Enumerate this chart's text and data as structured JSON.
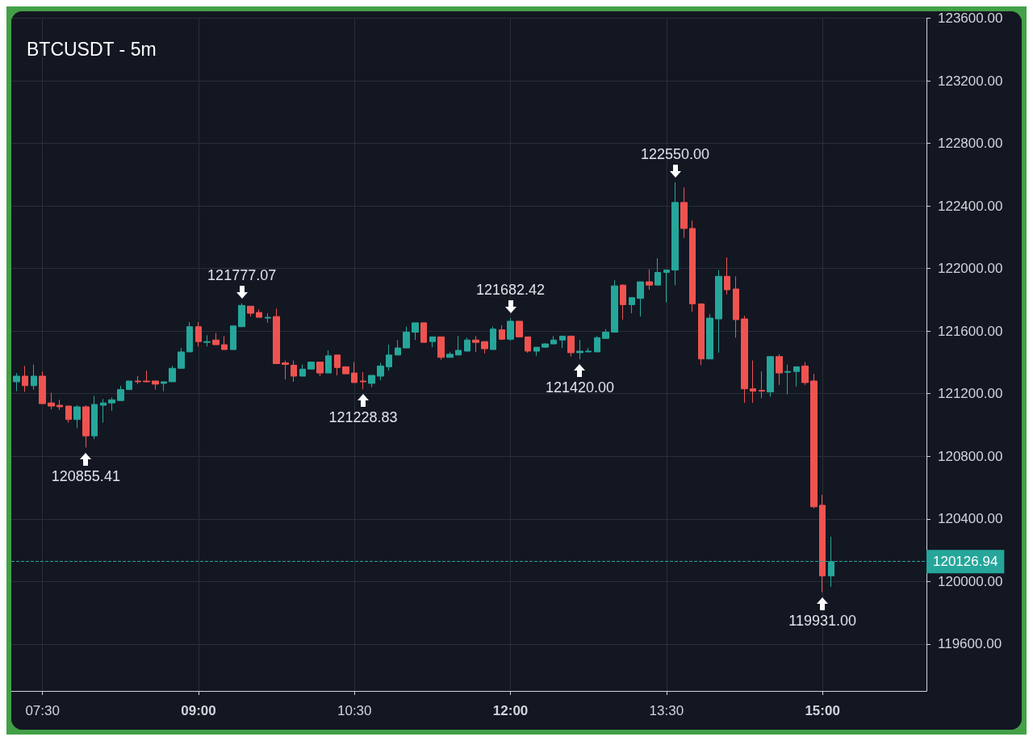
{
  "chart_data": {
    "type": "candlestick",
    "title": "BTCUSDT - 5m",
    "x": [
      7.25,
      7.3333,
      7.4167,
      7.5,
      7.5833,
      7.6667,
      7.75,
      7.8333,
      7.9167,
      8,
      8.0833,
      8.1667,
      8.25,
      8.3333,
      8.4167,
      8.5,
      8.5833,
      8.6667,
      8.75,
      8.8333,
      8.9167,
      9,
      9.0833,
      9.1667,
      9.25,
      9.3333,
      9.4167,
      9.5,
      9.5833,
      9.6667,
      9.75,
      9.8333,
      9.9167,
      10,
      10.0833,
      10.1667,
      10.25,
      10.3333,
      10.4167,
      10.5,
      10.5833,
      10.6667,
      10.75,
      10.8333,
      10.9167,
      11,
      11.0833,
      11.1667,
      11.25,
      11.3333,
      11.4167,
      11.5,
      11.5833,
      11.6667,
      11.75,
      11.8333,
      11.9167,
      12,
      12.0833,
      12.1667,
      12.25,
      12.3333,
      12.4167,
      12.5,
      12.5833,
      12.6667,
      12.75,
      12.8333,
      12.9167,
      13,
      13.0833,
      13.1667,
      13.25,
      13.3333,
      13.4167,
      13.5,
      13.5833,
      13.6667,
      13.75,
      13.8333,
      13.9167,
      14,
      14.0833,
      14.1667,
      14.25,
      14.3333,
      14.4167,
      14.5,
      14.5833,
      14.6667,
      14.75,
      14.8333,
      14.9167,
      15,
      15.0833
    ],
    "ohlc": [
      [
        121276,
        121332,
        121216,
        121312
      ],
      [
        121312,
        121377,
        121211,
        121251
      ],
      [
        121251,
        121387,
        121226,
        121312
      ],
      [
        121312,
        121342,
        121136,
        121136
      ],
      [
        121141,
        121206,
        121100,
        121121
      ],
      [
        121126,
        121161,
        121095,
        121116
      ],
      [
        121121,
        121121,
        121015,
        121035
      ],
      [
        121035,
        121126,
        120980,
        121116
      ],
      [
        121116,
        121126,
        120855.41,
        120930
      ],
      [
        120930,
        121186,
        120910,
        121131
      ],
      [
        121126,
        121166,
        121015,
        121141
      ],
      [
        121141,
        121176,
        121090,
        121161
      ],
      [
        121156,
        121251,
        121156,
        121226
      ],
      [
        121226,
        121281,
        121226,
        121281
      ],
      [
        121281,
        121312,
        121261,
        121276
      ],
      [
        121281,
        121347,
        121271,
        121276
      ],
      [
        121281,
        121281,
        121226,
        121261
      ],
      [
        121266,
        121276,
        121216,
        121276
      ],
      [
        121276,
        121377,
        121276,
        121362
      ],
      [
        121362,
        121492,
        121362,
        121467
      ],
      [
        121467,
        121658,
        121467,
        121628
      ],
      [
        121628,
        121658,
        121502,
        121533
      ],
      [
        121528,
        121573,
        121502,
        121533
      ],
      [
        121543,
        121588,
        121513,
        121513
      ],
      [
        121513,
        121568,
        121482,
        121482
      ],
      [
        121482,
        121633,
        121482,
        121633
      ],
      [
        121628,
        121777.07,
        121628,
        121764
      ],
      [
        121759,
        121759,
        121693,
        121714
      ],
      [
        121719,
        121739,
        121688,
        121688
      ],
      [
        121683,
        121714,
        121653,
        121688
      ],
      [
        121693,
        121744,
        121392,
        121392
      ],
      [
        121397,
        121412,
        121291,
        121387
      ],
      [
        121382,
        121412,
        121276,
        121312
      ],
      [
        121312,
        121387,
        121312,
        121357
      ],
      [
        121357,
        121402,
        121357,
        121402
      ],
      [
        121402,
        121402,
        121312,
        121332
      ],
      [
        121332,
        121477,
        121332,
        121442
      ],
      [
        121447,
        121447,
        121317,
        121367
      ],
      [
        121372,
        121372,
        121327,
        121327
      ],
      [
        121332,
        121402,
        121271,
        121271
      ],
      [
        121281,
        121337,
        121228.83,
        121276
      ],
      [
        121266,
        121317,
        121241,
        121317
      ],
      [
        121312,
        121397,
        121286,
        121377
      ],
      [
        121372,
        121513,
        121347,
        121447
      ],
      [
        121447,
        121543,
        121447,
        121492
      ],
      [
        121492,
        121628,
        121492,
        121593
      ],
      [
        121593,
        121653,
        121543,
        121653
      ],
      [
        121653,
        121653,
        121528,
        121528
      ],
      [
        121533,
        121563,
        121497,
        121563
      ],
      [
        121563,
        121563,
        121417,
        121432
      ],
      [
        121432,
        121467,
        121432,
        121452
      ],
      [
        121447,
        121568,
        121447,
        121477
      ],
      [
        121472,
        121558,
        121472,
        121543
      ],
      [
        121543,
        121568,
        121467,
        121528
      ],
      [
        121533,
        121533,
        121457,
        121487
      ],
      [
        121482,
        121628,
        121482,
        121613
      ],
      [
        121608,
        121638,
        121543,
        121548
      ],
      [
        121548,
        121682.42,
        121538,
        121663
      ],
      [
        121663,
        121663,
        121563,
        121563
      ],
      [
        121563,
        121563,
        121462,
        121472
      ],
      [
        121472,
        121497,
        121442,
        121497
      ],
      [
        121497,
        121523,
        121492,
        121518
      ],
      [
        121518,
        121568,
        121518,
        121543
      ],
      [
        121543,
        121568,
        121492,
        121568
      ],
      [
        121568,
        121568,
        121437,
        121462
      ],
      [
        121462,
        121543,
        121420,
        121472
      ],
      [
        121467,
        121492,
        121467,
        121472
      ],
      [
        121467,
        121568,
        121467,
        121558
      ],
      [
        121553,
        121613,
        121553,
        121593
      ],
      [
        121593,
        121925,
        121593,
        121889
      ],
      [
        121894,
        121900,
        121673,
        121769
      ],
      [
        121769,
        121814,
        121714,
        121814
      ],
      [
        121809,
        121915,
        121693,
        121915
      ],
      [
        121915,
        121995,
        121864,
        121894
      ],
      [
        121894,
        122065,
        121894,
        121975
      ],
      [
        121975,
        121990,
        121784,
        121990
      ],
      [
        121990,
        122550,
        121894,
        122422
      ],
      [
        122422,
        122518,
        122196,
        122256
      ],
      [
        122256,
        122306,
        121724,
        121774
      ],
      [
        121774,
        121774,
        121382,
        121422
      ],
      [
        121422,
        121709,
        121422,
        121683
      ],
      [
        121678,
        121990,
        121462,
        121950
      ],
      [
        121950,
        122070,
        121834,
        121864
      ],
      [
        121869,
        121950,
        121558,
        121673
      ],
      [
        121678,
        121698,
        121141,
        121231
      ],
      [
        121231,
        121412,
        121141,
        121216
      ],
      [
        121221,
        121342,
        121171,
        121216
      ],
      [
        121211,
        121437,
        121181,
        121437
      ],
      [
        121437,
        121452,
        121256,
        121332
      ],
      [
        121337,
        121387,
        121196,
        121342
      ],
      [
        121342,
        121372,
        121246,
        121372
      ],
      [
        121377,
        121402,
        121256,
        121271
      ],
      [
        121281,
        121327,
        120467,
        120477
      ],
      [
        120487,
        120553,
        119931,
        120035
      ],
      [
        120035,
        120286,
        119965,
        120126.94
      ]
    ],
    "xlim": [
      7.2,
      16
    ],
    "xticks": [
      {
        "value": 7.5,
        "label": "07:30"
      },
      {
        "value": 9,
        "label": "09:00"
      },
      {
        "value": 10.5,
        "label": "10:30"
      },
      {
        "value": 12,
        "label": "12:00"
      },
      {
        "value": 13.5,
        "label": "13:30"
      },
      {
        "value": 15,
        "label": "15:00"
      }
    ],
    "ylim": [
      119300,
      123600
    ],
    "yticks": [
      {
        "value": 119600,
        "label": "119600.00"
      },
      {
        "value": 120000,
        "label": "120000.00"
      },
      {
        "value": 120400,
        "label": "120400.00"
      },
      {
        "value": 120800,
        "label": "120800.00"
      },
      {
        "value": 121200,
        "label": "121200.00"
      },
      {
        "value": 121600,
        "label": "121600.00"
      },
      {
        "value": 122000,
        "label": "122000.00"
      },
      {
        "value": 122400,
        "label": "122400.00"
      },
      {
        "value": 122800,
        "label": "122800.00"
      },
      {
        "value": 123200,
        "label": "123200.00"
      },
      {
        "value": 123600,
        "label": "123600.00"
      }
    ],
    "grid": true,
    "ref_lines": [
      {
        "axis": "y",
        "value": 120126.94,
        "label": "120126.94",
        "color": "#26a69a",
        "line_style": "dashed"
      }
    ],
    "annotations": [
      {
        "text": "120855.41",
        "x": 7.9167,
        "y": 120855.41
      },
      {
        "text": "121777.07",
        "x": 9.4167,
        "y": 121777.07
      },
      {
        "text": "121228.83",
        "x": 10.5833,
        "y": 121228.83
      },
      {
        "text": "121682.42",
        "x": 12,
        "y": 121682.42
      },
      {
        "text": "121420.00",
        "x": 12.6667,
        "y": 121420
      },
      {
        "text": "122550.00",
        "x": 13.5833,
        "y": 122550
      },
      {
        "text": "119931.00",
        "x": 15,
        "y": 119931
      }
    ]
  }
}
